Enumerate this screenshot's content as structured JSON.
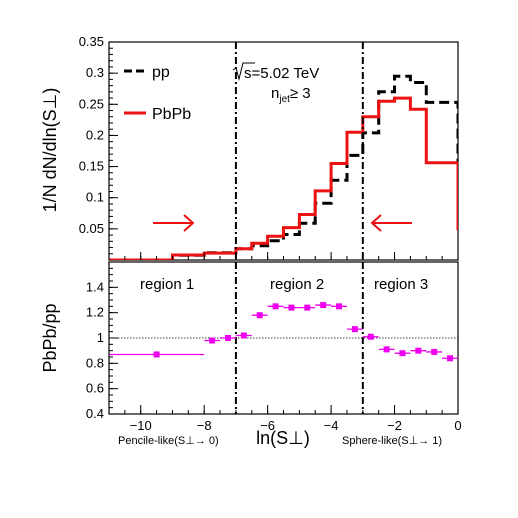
{
  "chart_data": [
    {
      "type": "line",
      "subtype": "step-histogram",
      "ylabel": "1/N dN/dln(S⊥)",
      "xlabel": "",
      "xlim": [
        -11,
        0
      ],
      "ylim": [
        0,
        0.35
      ],
      "yticks": [
        "0.05",
        "0.1",
        "0.15",
        "0.2",
        "0.25",
        "0.3",
        "0.35"
      ],
      "bin_edges": [
        -11,
        -10,
        -9,
        -8,
        -7,
        -6.5,
        -6,
        -5.5,
        -5,
        -4.5,
        -4,
        -3.5,
        -3,
        -2.5,
        -2,
        -1.5,
        -1,
        0
      ],
      "series": [
        {
          "name": "pp",
          "color": "#000000",
          "style": "dashed",
          "values": [
            0.0,
            0.0,
            0.0075,
            0.0115,
            0.018,
            0.023,
            0.031,
            0.041,
            0.059,
            0.091,
            0.128,
            0.168,
            0.204,
            0.27,
            0.295,
            0.285,
            0.253,
            0.057
          ]
        },
        {
          "name": "PbPb",
          "color": "#ee1111",
          "style": "solid",
          "values": [
            0.0,
            0.0,
            0.008,
            0.011,
            0.018,
            0.027,
            0.038,
            0.052,
            0.073,
            0.111,
            0.155,
            0.205,
            0.23,
            0.255,
            0.26,
            0.242,
            0.156,
            0.048
          ]
        }
      ],
      "legend_position": "top-left",
      "annotations": {
        "energy": "s=5.02 TeV",
        "njet": "n_jet≥ 3"
      },
      "vlines": [
        -7,
        -3
      ]
    },
    {
      "type": "scatter",
      "ylabel": "PbPb/pp",
      "xlabel": "ln(S⊥)",
      "xlim": [
        -11,
        0
      ],
      "ylim": [
        0.4,
        1.6
      ],
      "xticks": [
        "−10",
        "−8",
        "−6",
        "−4",
        "−2",
        "0"
      ],
      "yticks": [
        "0.4",
        "0.6",
        "0.8",
        "1",
        "1.2",
        "1.4"
      ],
      "series": [
        {
          "name": "",
          "color": "#ee00ee",
          "points": [
            {
              "x_low": -11,
              "x_high": -8,
              "y": 0.87
            },
            {
              "x_low": -8,
              "x_high": -7.5,
              "y": 0.98
            },
            {
              "x_low": -7.5,
              "x_high": -7,
              "y": 1.0
            },
            {
              "x_low": -7,
              "x_high": -6.5,
              "y": 1.02
            },
            {
              "x_low": -6.5,
              "x_high": -6,
              "y": 1.18
            },
            {
              "x_low": -6,
              "x_high": -5.5,
              "y": 1.25
            },
            {
              "x_low": -5.5,
              "x_high": -5,
              "y": 1.24
            },
            {
              "x_low": -5,
              "x_high": -4.5,
              "y": 1.24
            },
            {
              "x_low": -4.5,
              "x_high": -4,
              "y": 1.26
            },
            {
              "x_low": -4,
              "x_high": -3.5,
              "y": 1.25
            },
            {
              "x_low": -3.5,
              "x_high": -3,
              "y": 1.07
            },
            {
              "x_low": -3,
              "x_high": -2.5,
              "y": 1.01
            },
            {
              "x_low": -2.5,
              "x_high": -2,
              "y": 0.91
            },
            {
              "x_low": -2,
              "x_high": -1.5,
              "y": 0.88
            },
            {
              "x_low": -1.5,
              "x_high": -1,
              "y": 0.9
            },
            {
              "x_low": -1,
              "x_high": -0.5,
              "y": 0.89
            },
            {
              "x_low": -0.5,
              "x_high": 0,
              "y": 0.84
            }
          ]
        }
      ],
      "reference_line": 1,
      "vlines": [
        -7,
        -3
      ],
      "region_labels": [
        "region 1",
        "region 2",
        "region 3"
      ],
      "xaxis_notes": {
        "left": "Pencile-like(S⊥→ 0)",
        "right": "Sphere-like(S⊥→ 1)"
      }
    }
  ]
}
